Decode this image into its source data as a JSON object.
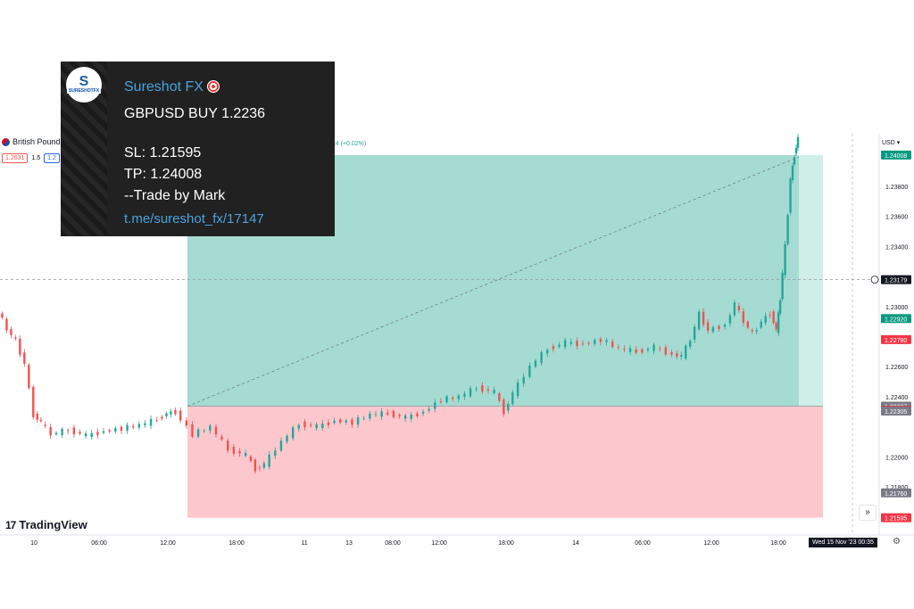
{
  "telegram": {
    "channel_name": "Sureshot FX",
    "avatar_text": "SURESHOTFX",
    "avatar_letter": "S",
    "lines": [
      "GBPUSD BUY 1.2236",
      "",
      "SL: 1.21595",
      "TP: 1.24008",
      "--Trade by Mark"
    ],
    "link": "t.me/sureshot_fx/17147",
    "link_color": "#4aa3df",
    "dart_icon": "target-dart-icon"
  },
  "header": {
    "symbol": "British Pound",
    "change": "024 (+0.02%)",
    "sell_chip": "1.2631",
    "spread": "1.5",
    "buy_chip": "1.2",
    "currency": "USD"
  },
  "branding": {
    "logo_mark": "17",
    "logo_text": "TradingView"
  },
  "status": {
    "datetime": "Wed 15 Nov '23   00:35"
  },
  "controls": {
    "goto_label": "»",
    "settings_icon": "gear-icon"
  },
  "chart_data": {
    "type": "candlestick",
    "pair": "GBPUSD",
    "ylim": [
      1.2148,
      1.2415
    ],
    "y_ticks": [
      "1.23800",
      "1.23600",
      "1.23400",
      "1.23000",
      "1.22600",
      "1.22400",
      "1.22000",
      "1.21800"
    ],
    "x_ticks": [
      "10",
      "06:00",
      "12:00",
      "18:00",
      "11",
      "13",
      "08:00",
      "12:00",
      "18:00",
      "14",
      "06:00",
      "12:00",
      "18:00"
    ],
    "price_labels": [
      {
        "value": "1.24008",
        "role": "take-profit",
        "color": "#089981"
      },
      {
        "value": "1.23179",
        "role": "crosshair",
        "color": "#131722"
      },
      {
        "value": "1.22920",
        "role": "current",
        "color": "#089981"
      },
      {
        "value": "1.22780",
        "role": "bid",
        "color": "#f23645"
      },
      {
        "value": "1.22337",
        "role": "entry",
        "color": "#787b86"
      },
      {
        "value": "1.22310",
        "role": "marker",
        "color": "#f23645"
      },
      {
        "value": "1.22305",
        "role": "marker",
        "color": "#787b86"
      },
      {
        "value": "1.21760",
        "role": "marker",
        "color": "#787b86"
      },
      {
        "value": "1.21595",
        "role": "stop-loss",
        "color": "#f23645"
      }
    ],
    "position": {
      "entry": 1.22337,
      "take_profit": 1.24008,
      "stop_loss": 1.21595
    },
    "price_path": [
      {
        "x": 0.0,
        "y": 1.2297
      },
      {
        "x": 0.5,
        "y": 1.2285
      },
      {
        "x": 1.0,
        "y": 1.2277
      },
      {
        "x": 1.5,
        "y": 1.2262
      },
      {
        "x": 2.0,
        "y": 1.2228
      },
      {
        "x": 2.4,
        "y": 1.2223
      },
      {
        "x": 3.0,
        "y": 1.2215
      },
      {
        "x": 4.0,
        "y": 1.2218
      },
      {
        "x": 5.0,
        "y": 1.2214
      },
      {
        "x": 6.0,
        "y": 1.2217
      },
      {
        "x": 7.0,
        "y": 1.2219
      },
      {
        "x": 8.0,
        "y": 1.2221
      },
      {
        "x": 9.0,
        "y": 1.2225
      },
      {
        "x": 9.5,
        "y": 1.2229
      },
      {
        "x": 10.0,
        "y": 1.223
      },
      {
        "x": 11.0,
        "y": 1.2215
      },
      {
        "x": 12.0,
        "y": 1.222
      },
      {
        "x": 13.0,
        "y": 1.2205
      },
      {
        "x": 14.0,
        "y": 1.2201
      },
      {
        "x": 14.5,
        "y": 1.2192
      },
      {
        "x": 15.0,
        "y": 1.2195
      },
      {
        "x": 16.0,
        "y": 1.221
      },
      {
        "x": 17.0,
        "y": 1.2222
      },
      {
        "x": 18.0,
        "y": 1.222
      },
      {
        "x": 19.0,
        "y": 1.2224
      },
      {
        "x": 20.0,
        "y": 1.2223
      },
      {
        "x": 21.0,
        "y": 1.2228
      },
      {
        "x": 22.0,
        "y": 1.2229
      },
      {
        "x": 23.0,
        "y": 1.2226
      },
      {
        "x": 24.0,
        "y": 1.223
      },
      {
        "x": 25.0,
        "y": 1.2238
      },
      {
        "x": 26.0,
        "y": 1.224
      },
      {
        "x": 27.0,
        "y": 1.2246
      },
      {
        "x": 28.0,
        "y": 1.2243
      },
      {
        "x": 28.5,
        "y": 1.223
      },
      {
        "x": 29.0,
        "y": 1.2242
      },
      {
        "x": 30.0,
        "y": 1.226
      },
      {
        "x": 31.0,
        "y": 1.2272
      },
      {
        "x": 32.0,
        "y": 1.2276
      },
      {
        "x": 33.0,
        "y": 1.2275
      },
      {
        "x": 34.0,
        "y": 1.2278
      },
      {
        "x": 35.0,
        "y": 1.2272
      },
      {
        "x": 36.0,
        "y": 1.227
      },
      {
        "x": 37.0,
        "y": 1.2273
      },
      {
        "x": 38.0,
        "y": 1.2268
      },
      {
        "x": 38.5,
        "y": 1.2267
      },
      {
        "x": 39.0,
        "y": 1.2278
      },
      {
        "x": 39.5,
        "y": 1.2295
      },
      {
        "x": 40.0,
        "y": 1.2284
      },
      {
        "x": 41.0,
        "y": 1.2288
      },
      {
        "x": 41.5,
        "y": 1.2302
      },
      {
        "x": 42.0,
        "y": 1.229
      },
      {
        "x": 42.5,
        "y": 1.2282
      },
      {
        "x": 43.0,
        "y": 1.229
      },
      {
        "x": 43.5,
        "y": 1.2296
      },
      {
        "x": 43.8,
        "y": 1.2284
      },
      {
        "x": 44.0,
        "y": 1.2305
      },
      {
        "x": 44.3,
        "y": 1.234
      },
      {
        "x": 44.6,
        "y": 1.2385
      },
      {
        "x": 44.8,
        "y": 1.2401
      },
      {
        "x": 45.0,
        "y": 1.2412
      }
    ]
  }
}
